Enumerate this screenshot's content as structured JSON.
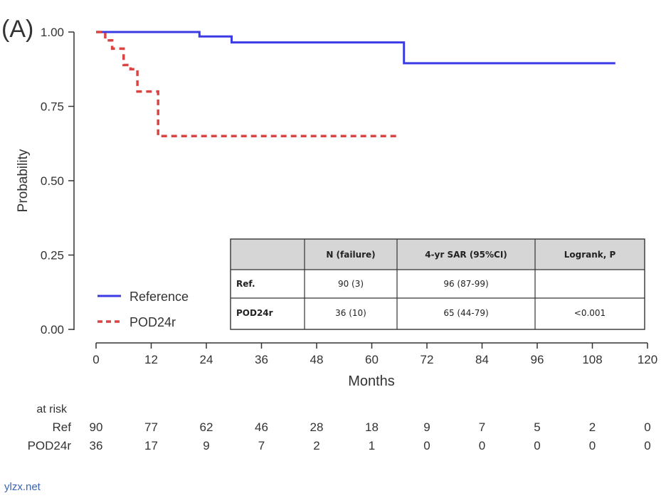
{
  "panel_label": "(A)",
  "watermark": "ylzx.net",
  "chart_data": {
    "type": "line",
    "xlabel": "Months",
    "ylabel": "Probability",
    "xlim": [
      0,
      120
    ],
    "ylim": [
      0,
      1
    ],
    "xticks": [
      "0",
      "12",
      "24",
      "36",
      "48",
      "60",
      "72",
      "84",
      "96",
      "108",
      "120"
    ],
    "yticks": [
      "0.00",
      "0.25",
      "0.50",
      "0.75",
      "1.00"
    ],
    "grid": false,
    "legend_position": "bottom-left",
    "series": [
      {
        "name": "Reference",
        "color": "#3a3ae6",
        "style": "solid",
        "step": true,
        "x": [
          0,
          22.5,
          29.5,
          67,
          113
        ],
        "y": [
          1.0,
          0.985,
          0.965,
          0.895,
          0.895
        ]
      },
      {
        "name": "POD24r",
        "color": "#d94545",
        "style": "dashed",
        "step": true,
        "x": [
          0,
          2,
          3.5,
          6,
          7.5,
          9,
          13.5,
          66
        ],
        "y": [
          1.0,
          0.972,
          0.944,
          0.889,
          0.875,
          0.8,
          0.65,
          0.65
        ]
      }
    ],
    "table": {
      "headers": [
        "",
        "N (failure)",
        "4-yr SAR (95%CI)",
        "Logrank, P"
      ],
      "rows": [
        [
          "Ref.",
          "90 (3)",
          "96 (87-99)",
          ""
        ],
        [
          "POD24r",
          "36 (10)",
          "65 (44-79)",
          "<0.001"
        ]
      ]
    },
    "at_risk": {
      "title": "at risk",
      "times": [
        0,
        12,
        24,
        36,
        48,
        60,
        72,
        84,
        96,
        108,
        120
      ],
      "rows": [
        {
          "label": "Ref",
          "values": [
            "90",
            "77",
            "62",
            "46",
            "28",
            "18",
            "9",
            "7",
            "5",
            "2",
            "0"
          ]
        },
        {
          "label": "POD24r",
          "values": [
            "36",
            "17",
            "9",
            "7",
            "2",
            "1",
            "0",
            "0",
            "0",
            "0",
            "0"
          ]
        }
      ]
    }
  }
}
